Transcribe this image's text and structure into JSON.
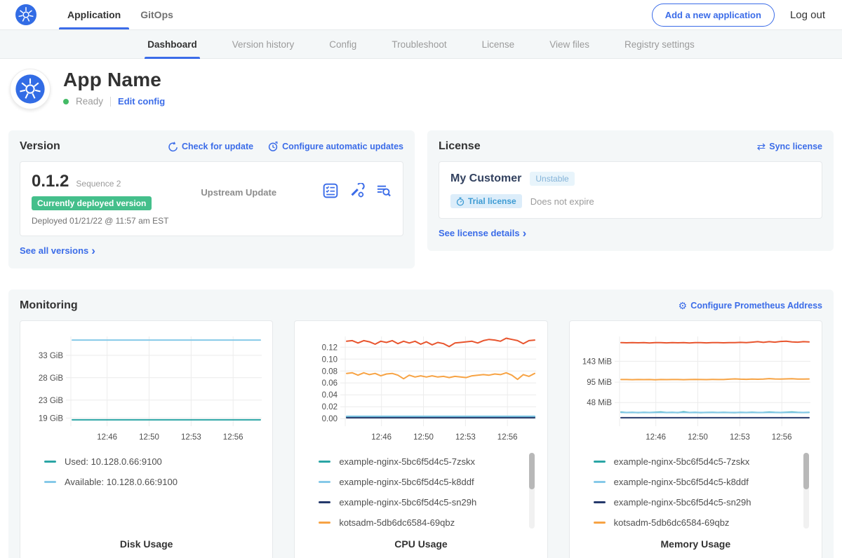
{
  "topnav": {
    "tabs": [
      {
        "label": "Application",
        "active": true
      },
      {
        "label": "GitOps",
        "active": false
      }
    ],
    "add_button": "Add a new application",
    "logout": "Log out"
  },
  "subnav": {
    "tabs": [
      {
        "label": "Dashboard",
        "active": true
      },
      {
        "label": "Version history",
        "active": false
      },
      {
        "label": "Config",
        "active": false
      },
      {
        "label": "Troubleshoot",
        "active": false
      },
      {
        "label": "License",
        "active": false
      },
      {
        "label": "View files",
        "active": false
      },
      {
        "label": "Registry settings",
        "active": false
      }
    ]
  },
  "app_header": {
    "name": "App Name",
    "status": "Ready",
    "edit_config": "Edit config"
  },
  "version": {
    "title": "Version",
    "check_update": "Check for update",
    "configure_updates": "Configure automatic updates",
    "number": "0.1.2",
    "sequence": "Sequence 2",
    "badge": "Currently deployed version",
    "deployed": "Deployed 01/21/22 @ 11:57 am EST",
    "source": "Upstream Update",
    "see_all": "See all versions",
    "chevron": "›",
    "icons": [
      "preflight-checks-icon",
      "config-wrench-icon",
      "deploy-logs-icon"
    ]
  },
  "license": {
    "title": "License",
    "sync": "Sync license",
    "sync_icon": "⇄",
    "customer": "My Customer",
    "channel_badge": "Unstable",
    "type_badge": "Trial license",
    "expiry": "Does not expire",
    "see_details": "See license details",
    "chevron": "›"
  },
  "monitoring": {
    "title": "Monitoring",
    "configure": "Configure Prometheus Address",
    "gear_icon": "⚙"
  },
  "colors": {
    "accent_blue": "#3b6ce8",
    "k8s_blue": "#326ce5",
    "deployed_badge_green": "#44bf8b",
    "status_green": "#44bb66",
    "series_teal": "#2aa5a5",
    "series_lightblue": "#85c9e8",
    "series_navy": "#25396b",
    "series_orange": "#f7a344",
    "series_red": "#e8552e"
  },
  "chart_data": [
    {
      "type": "line",
      "title": "Disk Usage",
      "x_ticks": [
        "12:46",
        "12:50",
        "12:53",
        "12:56"
      ],
      "y_ticks": [
        {
          "label": "33 GiB",
          "value": 33
        },
        {
          "label": "28 GiB",
          "value": 28
        },
        {
          "label": "23 GiB",
          "value": 23
        },
        {
          "label": "19 GiB",
          "value": 19
        }
      ],
      "ylim": [
        17.8,
        37.2
      ],
      "grid": true,
      "legend_position": "bottom-left",
      "scrollbar": false,
      "series": [
        {
          "name": "Used: 10.128.0.66:9100",
          "color": "#2aa5a5",
          "values": [
            18.6,
            18.6
          ]
        },
        {
          "name": "Available: 10.128.0.66:9100",
          "color": "#85c9e8",
          "values": [
            36.4,
            36.4
          ]
        }
      ]
    },
    {
      "type": "line",
      "title": "CPU Usage",
      "x_ticks": [
        "12:46",
        "12:50",
        "12:53",
        "12:56"
      ],
      "y_ticks": [
        {
          "label": "0.12",
          "value": 0.12
        },
        {
          "label": "0.10",
          "value": 0.1
        },
        {
          "label": "0.08",
          "value": 0.08
        },
        {
          "label": "0.06",
          "value": 0.06
        },
        {
          "label": "0.04",
          "value": 0.04
        },
        {
          "label": "0.02",
          "value": 0.02
        },
        {
          "label": "0.00",
          "value": 0.0
        }
      ],
      "ylim": [
        -0.008,
        0.138
      ],
      "grid": true,
      "legend_position": "bottom-left",
      "scrollbar": true,
      "series": [
        {
          "name": "example-nginx-5bc6f5d4c5-7zskx",
          "color": "#2aa5a5",
          "values": [
            0.003,
            0.003
          ]
        },
        {
          "name": "example-nginx-5bc6f5d4c5-k8ddf",
          "color": "#85c9e8",
          "values": [
            0.004,
            0.004
          ]
        },
        {
          "name": "example-nginx-5bc6f5d4c5-sn29h",
          "color": "#25396b",
          "values": [
            0.0015,
            0.0015
          ]
        },
        {
          "name": "kotsadm-5db6dc6584-69qbz",
          "color": "#f7a344",
          "values": [
            0.076,
            0.077,
            0.073,
            0.077,
            0.074,
            0.076,
            0.072,
            0.075,
            0.076,
            0.073,
            0.067,
            0.073,
            0.07,
            0.072,
            0.07,
            0.072,
            0.07,
            0.071,
            0.069,
            0.071,
            0.07,
            0.069,
            0.072,
            0.073,
            0.074,
            0.073,
            0.075,
            0.074,
            0.077,
            0.073,
            0.066,
            0.074,
            0.071,
            0.076
          ]
        },
        {
          "name": "",
          "color": "#e8552e",
          "values": [
            0.13,
            0.131,
            0.127,
            0.131,
            0.129,
            0.125,
            0.13,
            0.128,
            0.131,
            0.126,
            0.13,
            0.127,
            0.13,
            0.125,
            0.129,
            0.124,
            0.128,
            0.126,
            0.121,
            0.127,
            0.128,
            0.129,
            0.13,
            0.127,
            0.131,
            0.133,
            0.132,
            0.13,
            0.135,
            0.133,
            0.131,
            0.126,
            0.131,
            0.132
          ]
        }
      ]
    },
    {
      "type": "line",
      "title": "Memory Usage",
      "x_ticks": [
        "12:46",
        "12:50",
        "12:53",
        "12:56"
      ],
      "y_ticks": [
        {
          "label": "143 MiB",
          "value": 143
        },
        {
          "label": "95 MiB",
          "value": 95
        },
        {
          "label": "48 MiB",
          "value": 48
        }
      ],
      "ylim": [
        0,
        200
      ],
      "grid": true,
      "legend_position": "bottom-left",
      "scrollbar": true,
      "series": [
        {
          "name": "example-nginx-5bc6f5d4c5-7zskx",
          "color": "#2aa5a5",
          "values": [
            26,
            25,
            25.5,
            24.8,
            25.3,
            25,
            25.6,
            26.2,
            25,
            25.4,
            24.8,
            26.6,
            25,
            25.5,
            24.9,
            25.2,
            25.5,
            25,
            25.4,
            25,
            24.8,
            25.5,
            25,
            25.6,
            25,
            25.2,
            26,
            25.4,
            25,
            25.6,
            26.2,
            25.4,
            25,
            25.5
          ]
        },
        {
          "name": "example-nginx-5bc6f5d4c5-k8ddf",
          "color": "#85c9e8",
          "values": [
            25.2,
            25.2
          ]
        },
        {
          "name": "example-nginx-5bc6f5d4c5-sn29h",
          "color": "#25396b",
          "values": [
            13,
            13
          ]
        },
        {
          "name": "kotsadm-5db6dc6584-69qbz",
          "color": "#f7a344",
          "values": [
            101,
            101,
            100.6,
            101,
            100.8,
            101,
            100.5,
            101,
            100.8,
            101,
            101,
            100.6,
            101,
            101.2,
            101,
            100.8,
            101.3,
            101,
            101,
            101.8,
            102.5,
            101.8,
            101.4,
            102,
            101.6,
            102,
            103,
            102.2,
            102,
            102.4,
            102.8,
            102,
            102,
            102.2
          ]
        },
        {
          "name": "",
          "color": "#e8552e",
          "values": [
            186,
            185.5,
            186,
            185.5,
            186,
            185.2,
            186,
            185.8,
            185.3,
            186,
            185.5,
            186,
            185.2,
            185.8,
            186,
            185.4,
            186,
            185.8,
            185.5,
            186,
            186,
            186.5,
            186,
            187,
            188,
            186.5,
            188,
            187,
            188.5,
            189,
            187.5,
            187,
            188,
            187.5
          ]
        }
      ]
    }
  ]
}
